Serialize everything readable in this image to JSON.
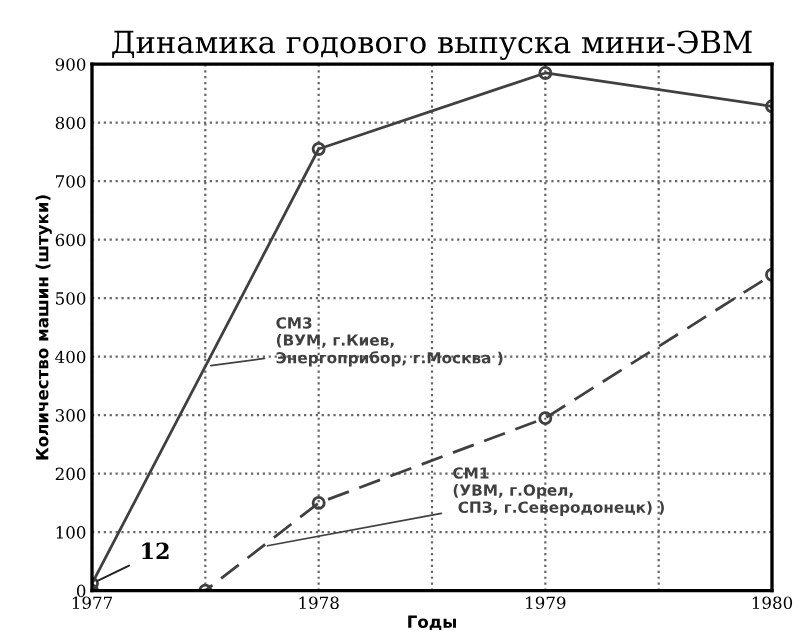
{
  "chart_data": {
    "type": "line",
    "title": "Динамика годового выпуска мини-ЭВМ",
    "xlabel": "Годы",
    "ylabel": "Количество машин (штуки)",
    "series": [
      {
        "name": "СМ3\n(ВУМ, г.Киев,\nЭнергоприбор, г.Москва )",
        "color": "#404040",
        "x": [
          1977,
          1978,
          1979,
          1980
        ],
        "values": [
          12,
          755,
          885,
          828
        ],
        "line_style": "solid"
      },
      {
        "name": "СМ1\n(УВМ, г.Орел,\n СПЗ, г.Северодонецк) )",
        "color": "#404040",
        "x": [
          1977,
          1977.5,
          1978,
          1979,
          1980
        ],
        "values": [
          0,
          0,
          150,
          295,
          540
        ],
        "line_style": "dashed"
      }
    ],
    "annotations": [
      {
        "text": "12",
        "x": 1977,
        "y": 12
      }
    ],
    "xlim": [
      1977,
      1980
    ],
    "ylim": [
      0,
      900
    ],
    "xticks": [
      1977,
      {
        "value": 1977.5,
        "label": null
      },
      1978,
      {
        "value": 1978.5,
        "label": null
      },
      1979,
      {
        "value": 1979.5,
        "label": null
      },
      1980
    ],
    "yticks": [
      0,
      100,
      200,
      300,
      400,
      500,
      600,
      700,
      800,
      900
    ],
    "grid": true,
    "marker": "circle"
  }
}
